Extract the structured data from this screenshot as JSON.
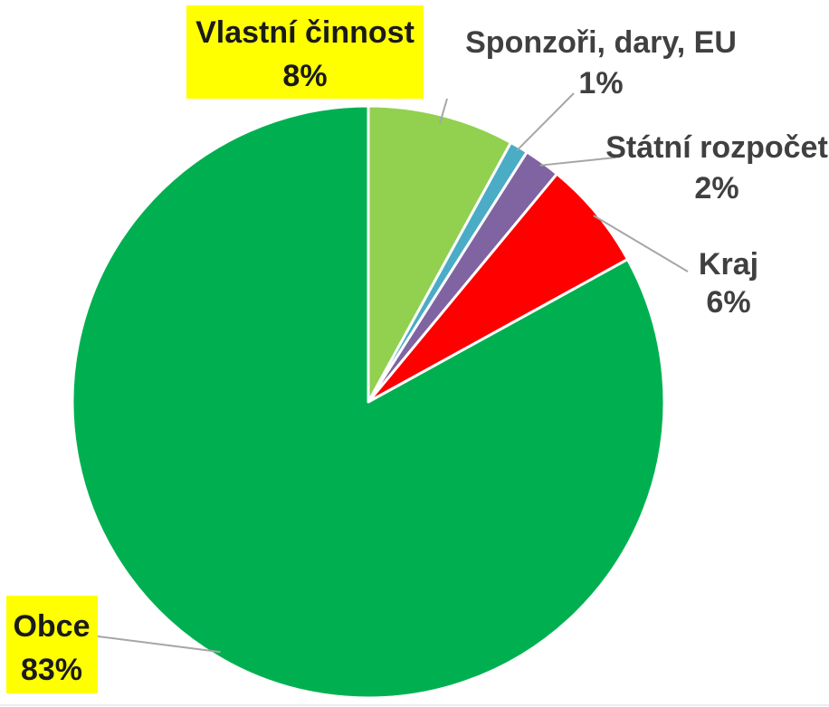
{
  "chart_data": {
    "type": "pie",
    "title": "",
    "start_angle_deg": 0,
    "direction": "clockwise",
    "slices": [
      {
        "name": "Vlastní činnost",
        "value": 8,
        "value_label": "8%",
        "color": "#92d050",
        "highlight": true
      },
      {
        "name": "Sponzoři, dary, EU",
        "value": 1,
        "value_label": "1%",
        "color": "#4bacc6",
        "highlight": false
      },
      {
        "name": "Státní rozpočet",
        "value": 2,
        "value_label": "2%",
        "color": "#8064a2",
        "highlight": false
      },
      {
        "name": "Kraj",
        "value": 6,
        "value_label": "6%",
        "color": "#ff0000",
        "highlight": false
      },
      {
        "name": "Obce",
        "value": 83,
        "value_label": "83%",
        "color": "#00b050",
        "highlight": true
      }
    ],
    "label_highlight_color": "#ffff00"
  }
}
